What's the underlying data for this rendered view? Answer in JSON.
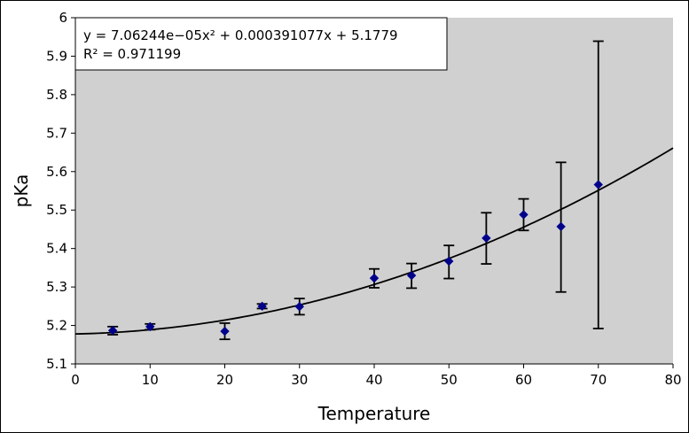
{
  "chart_data": {
    "type": "scatter",
    "xlabel": "Temperature",
    "ylabel": "pKa",
    "xlim": [
      0,
      80
    ],
    "ylim": [
      5.1,
      6.0
    ],
    "x_ticks": [
      "0",
      "10",
      "20",
      "30",
      "40",
      "50",
      "60",
      "70",
      "80"
    ],
    "y_ticks": [
      "5.1",
      "5.2",
      "5.3",
      "5.4",
      "5.5",
      "5.6",
      "5.7",
      "5.8",
      "5.9",
      "6"
    ],
    "grid": false,
    "plot_background": "#d0d0d0",
    "marker_color": "#00008b",
    "marker_shape": "diamond",
    "annotation": {
      "equation": "y = 7.06244e−05x² + 0.000391077x + 5.1779",
      "r_squared": "R² = 0.971199"
    },
    "fit": {
      "a": 7.06244e-05,
      "b": 0.000391077,
      "c": 5.1779
    },
    "points": [
      {
        "x": 5,
        "y": 5.187,
        "err_low": 5.176,
        "err_high": 5.197
      },
      {
        "x": 10,
        "y": 5.197,
        "err_low": 5.189,
        "err_high": 5.204
      },
      {
        "x": 20,
        "y": 5.185,
        "err_low": 5.164,
        "err_high": 5.206
      },
      {
        "x": 25,
        "y": 5.25,
        "err_low": 5.244,
        "err_high": 5.256
      },
      {
        "x": 30,
        "y": 5.249,
        "err_low": 5.228,
        "err_high": 5.27
      },
      {
        "x": 40,
        "y": 5.323,
        "err_low": 5.298,
        "err_high": 5.347
      },
      {
        "x": 45,
        "y": 5.33,
        "err_low": 5.297,
        "err_high": 5.361
      },
      {
        "x": 50,
        "y": 5.367,
        "err_low": 5.322,
        "err_high": 5.408
      },
      {
        "x": 55,
        "y": 5.427,
        "err_low": 5.36,
        "err_high": 5.493
      },
      {
        "x": 60,
        "y": 5.488,
        "err_low": 5.447,
        "err_high": 5.529
      },
      {
        "x": 65,
        "y": 5.457,
        "err_low": 5.287,
        "err_high": 5.624
      },
      {
        "x": 70,
        "y": 5.566,
        "err_low": 5.192,
        "err_high": 5.939
      }
    ]
  }
}
